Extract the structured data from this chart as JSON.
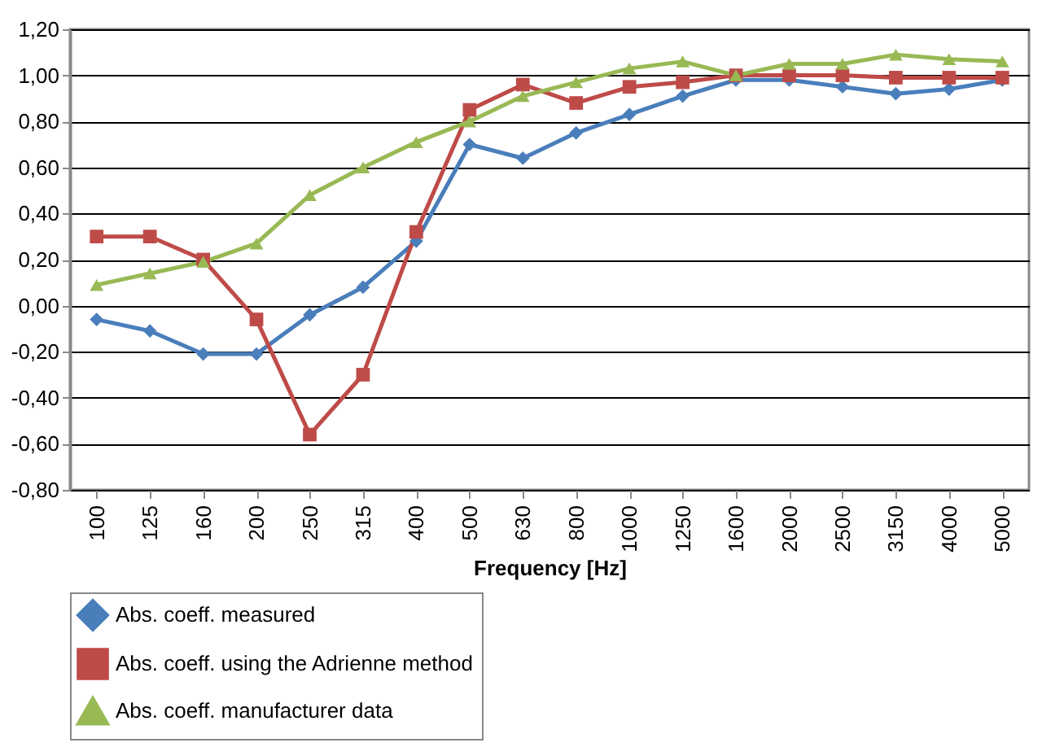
{
  "chart_data": {
    "type": "line",
    "xlabel": "Frequency [Hz]",
    "categories": [
      "100",
      "125",
      "160",
      "200",
      "250",
      "315",
      "400",
      "500",
      "630",
      "800",
      "1000",
      "1250",
      "1600",
      "2000",
      "2500",
      "3150",
      "4000",
      "5000"
    ],
    "series": [
      {
        "name": "Abs. coeff. measured",
        "color": "#4a7ebb",
        "marker": "diamond",
        "values": [
          -0.06,
          -0.11,
          -0.21,
          -0.21,
          -0.04,
          0.08,
          0.28,
          0.7,
          0.64,
          0.75,
          0.83,
          0.91,
          0.98,
          0.98,
          0.95,
          0.92,
          0.94,
          0.98
        ]
      },
      {
        "name": "Abs. coeff. using the Adrienne method",
        "color": "#be4b48",
        "marker": "square",
        "values": [
          0.3,
          0.3,
          0.2,
          -0.06,
          -0.56,
          -0.3,
          0.32,
          0.85,
          0.96,
          0.88,
          0.95,
          0.97,
          1.0,
          1.0,
          1.0,
          0.99,
          0.99,
          0.99
        ]
      },
      {
        "name": "Abs. coeff. manufacturer data",
        "color": "#98b954",
        "marker": "triangle",
        "values": [
          0.09,
          0.14,
          0.19,
          0.27,
          0.48,
          0.6,
          0.71,
          0.8,
          0.91,
          0.97,
          1.03,
          1.06,
          1.0,
          1.05,
          1.05,
          1.09,
          1.07,
          1.06
        ]
      }
    ],
    "ylim": [
      -0.8,
      1.2
    ],
    "yticks": [
      {
        "value": -0.8,
        "label": "-0,80"
      },
      {
        "value": -0.6,
        "label": "-0,60"
      },
      {
        "value": -0.4,
        "label": "-0,40"
      },
      {
        "value": -0.2,
        "label": "-0,20"
      },
      {
        "value": 0,
        "label": "0,00"
      },
      {
        "value": 0.2,
        "label": "0,20"
      },
      {
        "value": 0.4,
        "label": "0,40"
      },
      {
        "value": 0.6,
        "label": "0,60"
      },
      {
        "value": 0.8,
        "label": "0,80"
      },
      {
        "value": 1,
        "label": "1,00"
      },
      {
        "value": 1.2,
        "label": "1,20"
      }
    ],
    "grid": "y",
    "legend": "bottom",
    "line_style": "solid"
  }
}
